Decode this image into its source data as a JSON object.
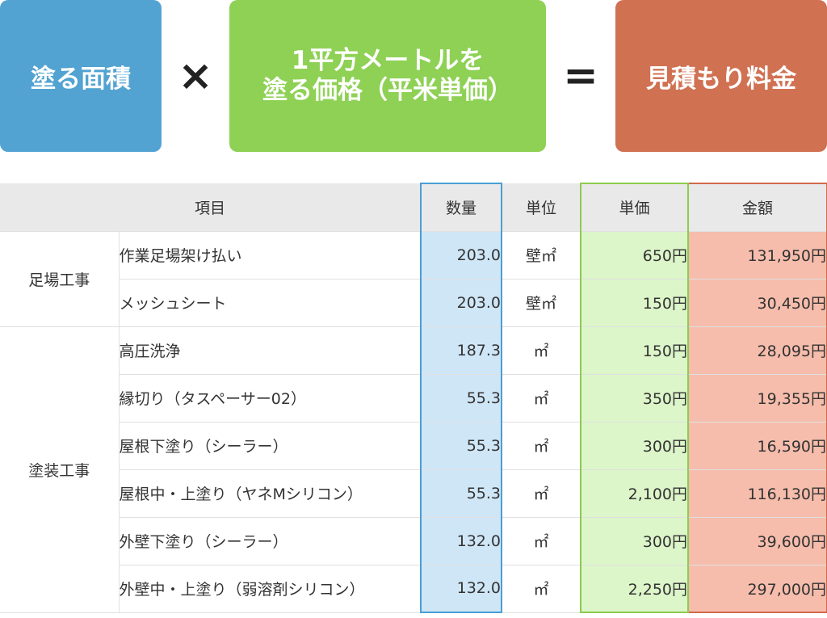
{
  "formula": {
    "area_label": "塗る面積",
    "times_symbol": "×",
    "unit_price_line1": "1平方メートルを",
    "unit_price_line2": "塗る価格（平米単価）",
    "equals_symbol": "=",
    "total_label": "見積もり料金",
    "colors": {
      "area": "#52a3d2",
      "unit_price": "#8ed155",
      "total": "#d07152"
    }
  },
  "table": {
    "headers": {
      "item": "項目",
      "qty": "数量",
      "unit": "単位",
      "unit_price": "単価",
      "amount": "金額"
    },
    "groups": [
      {
        "category": "足場工事",
        "rows": [
          {
            "item": "作業足場架け払い",
            "qty": "203.0",
            "unit": "壁㎡",
            "unit_price": "650円",
            "amount": "131,950円"
          },
          {
            "item": "メッシュシート",
            "qty": "203.0",
            "unit": "壁㎡",
            "unit_price": "150円",
            "amount": "30,450円"
          }
        ]
      },
      {
        "category": "塗装工事",
        "rows": [
          {
            "item": "高圧洗浄",
            "qty": "187.3",
            "unit": "㎡",
            "unit_price": "150円",
            "amount": "28,095円"
          },
          {
            "item": "縁切り（タスペーサー02）",
            "qty": "55.3",
            "unit": "㎡",
            "unit_price": "350円",
            "amount": "19,355円"
          },
          {
            "item": "屋根下塗り（シーラー）",
            "qty": "55.3",
            "unit": "㎡",
            "unit_price": "300円",
            "amount": "16,590円"
          },
          {
            "item": "屋根中・上塗り（ヤネMシリコン）",
            "qty": "55.3",
            "unit": "㎡",
            "unit_price": "2,100円",
            "amount": "116,130円"
          },
          {
            "item": "外壁下塗り（シーラー）",
            "qty": "132.0",
            "unit": "㎡",
            "unit_price": "300円",
            "amount": "39,600円"
          },
          {
            "item": "外壁中・上塗り（弱溶剤シリコン）",
            "qty": "132.0",
            "unit": "㎡",
            "unit_price": "2,250円",
            "amount": "297,000円"
          }
        ]
      }
    ]
  }
}
